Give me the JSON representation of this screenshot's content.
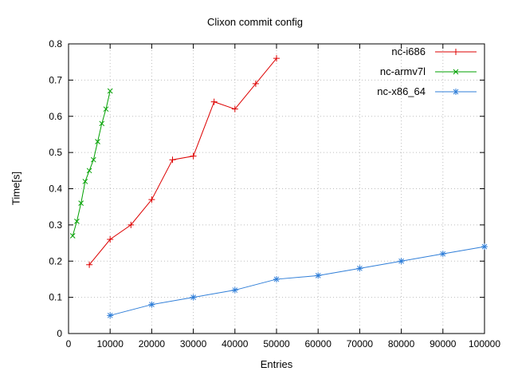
{
  "chart_data": {
    "type": "line",
    "title": "Clixon commit config",
    "xlabel": "Entries",
    "ylabel": "Time[s]",
    "xlim": [
      0,
      100000
    ],
    "ylim": [
      0,
      0.8
    ],
    "xticks": [
      0,
      10000,
      20000,
      30000,
      40000,
      50000,
      60000,
      70000,
      80000,
      90000,
      100000
    ],
    "yticks": [
      0,
      0.1,
      0.2,
      0.3,
      0.4,
      0.5,
      0.6,
      0.7,
      0.8
    ],
    "grid": true,
    "legend_position": "top-right",
    "series": [
      {
        "name": "nc-i686",
        "color": "#dd0000",
        "marker": "plus",
        "x": [
          5000,
          10000,
          15000,
          20000,
          25000,
          30000,
          35000,
          40000,
          45000,
          50000
        ],
        "y": [
          0.19,
          0.26,
          0.3,
          0.37,
          0.48,
          0.49,
          0.64,
          0.62,
          0.69,
          0.76
        ]
      },
      {
        "name": "nc-armv7l",
        "color": "#00a000",
        "marker": "x",
        "x": [
          1000,
          2000,
          3000,
          4000,
          5000,
          6000,
          7000,
          8000,
          9000,
          10000
        ],
        "y": [
          0.27,
          0.31,
          0.36,
          0.42,
          0.45,
          0.48,
          0.53,
          0.58,
          0.62,
          0.67
        ]
      },
      {
        "name": "nc-x86_64",
        "color": "#2f7ed8",
        "marker": "asterisk",
        "x": [
          10000,
          20000,
          30000,
          40000,
          50000,
          60000,
          70000,
          80000,
          90000,
          100000
        ],
        "y": [
          0.05,
          0.08,
          0.1,
          0.12,
          0.15,
          0.16,
          0.18,
          0.2,
          0.22,
          0.24
        ]
      }
    ]
  }
}
